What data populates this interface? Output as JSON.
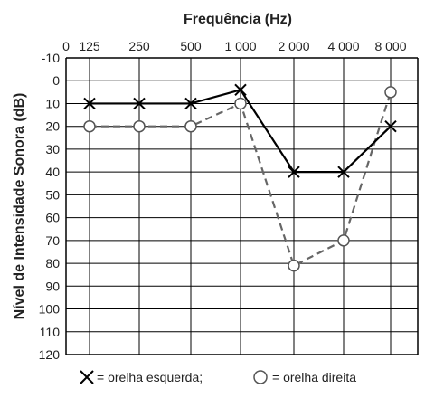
{
  "chart_data": {
    "type": "line",
    "title": "Frequência (Hz)",
    "xlabel": "Frequência (Hz)",
    "ylabel": "Nível de Intensidade Sonora (dB)",
    "x_ticks": [
      "0",
      "125",
      "250",
      "500",
      "1 000",
      "2 000",
      "4 000",
      "8 000"
    ],
    "y_ticks": [
      "-10",
      "0",
      "10",
      "20",
      "30",
      "40",
      "50",
      "60",
      "70",
      "80",
      "90",
      "100",
      "110",
      "120"
    ],
    "ylim": [
      -10,
      120
    ],
    "y_inverted": true,
    "grid": true,
    "categories": [
      "125",
      "250",
      "500",
      "1 000",
      "2 000",
      "4 000",
      "8 000"
    ],
    "series": [
      {
        "legend_label": "= orelha esquerda;",
        "marker": "x",
        "line": "solid",
        "color": "#000000",
        "values": [
          10,
          10,
          10,
          4,
          40,
          40,
          20
        ]
      },
      {
        "legend_label": "= orelha direita",
        "marker": "o",
        "line": "dashed",
        "color": "#666666",
        "values": [
          20,
          20,
          20,
          10,
          81,
          70,
          5
        ]
      }
    ]
  }
}
